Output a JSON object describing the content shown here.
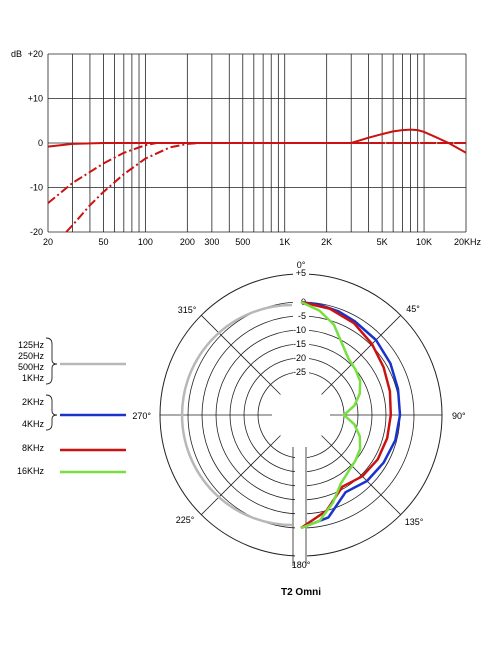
{
  "chart_data": [
    {
      "type": "line",
      "title": "",
      "xlabel": "",
      "ylabel": "dB",
      "x_scale": "log",
      "xlim": [
        20,
        20000
      ],
      "ylim": [
        -20,
        20
      ],
      "grid": true,
      "x_tick_labels": [
        "20",
        "50",
        "100",
        "200",
        "300",
        "500",
        "1K",
        "2K",
        "5K",
        "10K",
        "20KHz"
      ],
      "x_tick_values": [
        20,
        50,
        100,
        200,
        300,
        500,
        1000,
        2000,
        5000,
        10000,
        20000
      ],
      "y_tick_labels": [
        "+20",
        "+10",
        "0",
        "-10",
        "-20"
      ],
      "y_tick_values": [
        20,
        10,
        0,
        -10,
        -20
      ],
      "color": "#cc1111",
      "series": [
        {
          "style": "solid",
          "x": [
            20,
            30,
            50,
            100,
            200,
            500,
            1000,
            2000,
            3000,
            4000,
            5000,
            6000,
            7000,
            8000,
            9000,
            10000,
            12000,
            15000,
            20000
          ],
          "y": [
            -0.8,
            -0.2,
            0,
            0,
            0,
            0,
            0,
            0,
            0,
            1.2,
            2.0,
            2.6,
            2.9,
            3.0,
            2.9,
            2.5,
            1.4,
            0,
            -2.2
          ]
        },
        {
          "style": "dashed",
          "x": [
            20,
            30,
            50,
            70,
            100,
            120,
            150,
            200,
            20000
          ],
          "y": [
            -13.5,
            -9,
            -4.6,
            -2.2,
            -0.5,
            0,
            0,
            0,
            0
          ]
        },
        {
          "style": "dashed",
          "x": [
            27,
            30,
            40,
            50,
            70,
            100,
            150,
            200,
            250,
            20000
          ],
          "y": [
            -20,
            -18.5,
            -14,
            -11,
            -7,
            -3.5,
            -1,
            -0.2,
            0,
            0
          ]
        }
      ]
    },
    {
      "type": "polar",
      "title": "T2 Omni",
      "r_tick_labels": [
        "+5",
        "0",
        "-5",
        "-10",
        "-15",
        "-20",
        "-25"
      ],
      "r_tick_values": [
        5,
        0,
        -5,
        -10,
        -15,
        -20,
        -25
      ],
      "rlim": [
        -30,
        5
      ],
      "angle_labels": {
        "a0": "0°",
        "a45": "45°",
        "a90": "90°",
        "a135": "135°",
        "a180": "180°",
        "a225": "225°",
        "a270": "270°",
        "a315": "315°"
      },
      "legend": [
        {
          "labels": [
            "125Hz",
            "250Hz",
            "500Hz",
            "1KHz"
          ],
          "color": "#b8b8b8"
        },
        {
          "labels": [
            "2KHz",
            "4KHz"
          ],
          "color": "#1a33cc"
        },
        {
          "labels": [
            "8KHz"
          ],
          "color": "#cc1111"
        },
        {
          "labels": [
            "16KHz"
          ],
          "color": "#77e040"
        }
      ],
      "series": [
        {
          "color": "#b8b8b8",
          "angles": [
            0,
            180
          ],
          "db": [
            0,
            0
          ],
          "side": "left"
        },
        {
          "color": "#1a33cc",
          "angles": [
            0,
            10,
            20,
            30,
            45,
            60,
            75,
            90,
            105,
            120,
            135,
            150,
            165,
            180
          ],
          "db": [
            0,
            -0.5,
            -1,
            -1.8,
            -2.5,
            -3.5,
            -4.5,
            -5,
            -5.5,
            -6.3,
            -7,
            -8.5,
            -2.5,
            0
          ]
        },
        {
          "color": "#cc1111",
          "angles": [
            0,
            15,
            30,
            45,
            60,
            75,
            90,
            105,
            120,
            135,
            150,
            165,
            180
          ],
          "db": [
            0,
            -1,
            -2.5,
            -4.5,
            -6.3,
            -7.5,
            -8.3,
            -8.5,
            -8.7,
            -9.4,
            -10.8,
            -5,
            0
          ]
        },
        {
          "color": "#77e040",
          "angles": [
            0,
            10,
            20,
            30,
            40,
            50,
            60,
            70,
            80,
            90,
            100,
            110,
            120,
            130,
            140,
            150,
            160,
            170,
            180
          ],
          "db": [
            0,
            -2.5,
            -6,
            -11,
            -14,
            -15,
            -16,
            -18,
            -21,
            -25,
            -21,
            -18,
            -16,
            -15,
            -14,
            -12,
            -7,
            -2,
            0
          ]
        }
      ]
    }
  ]
}
